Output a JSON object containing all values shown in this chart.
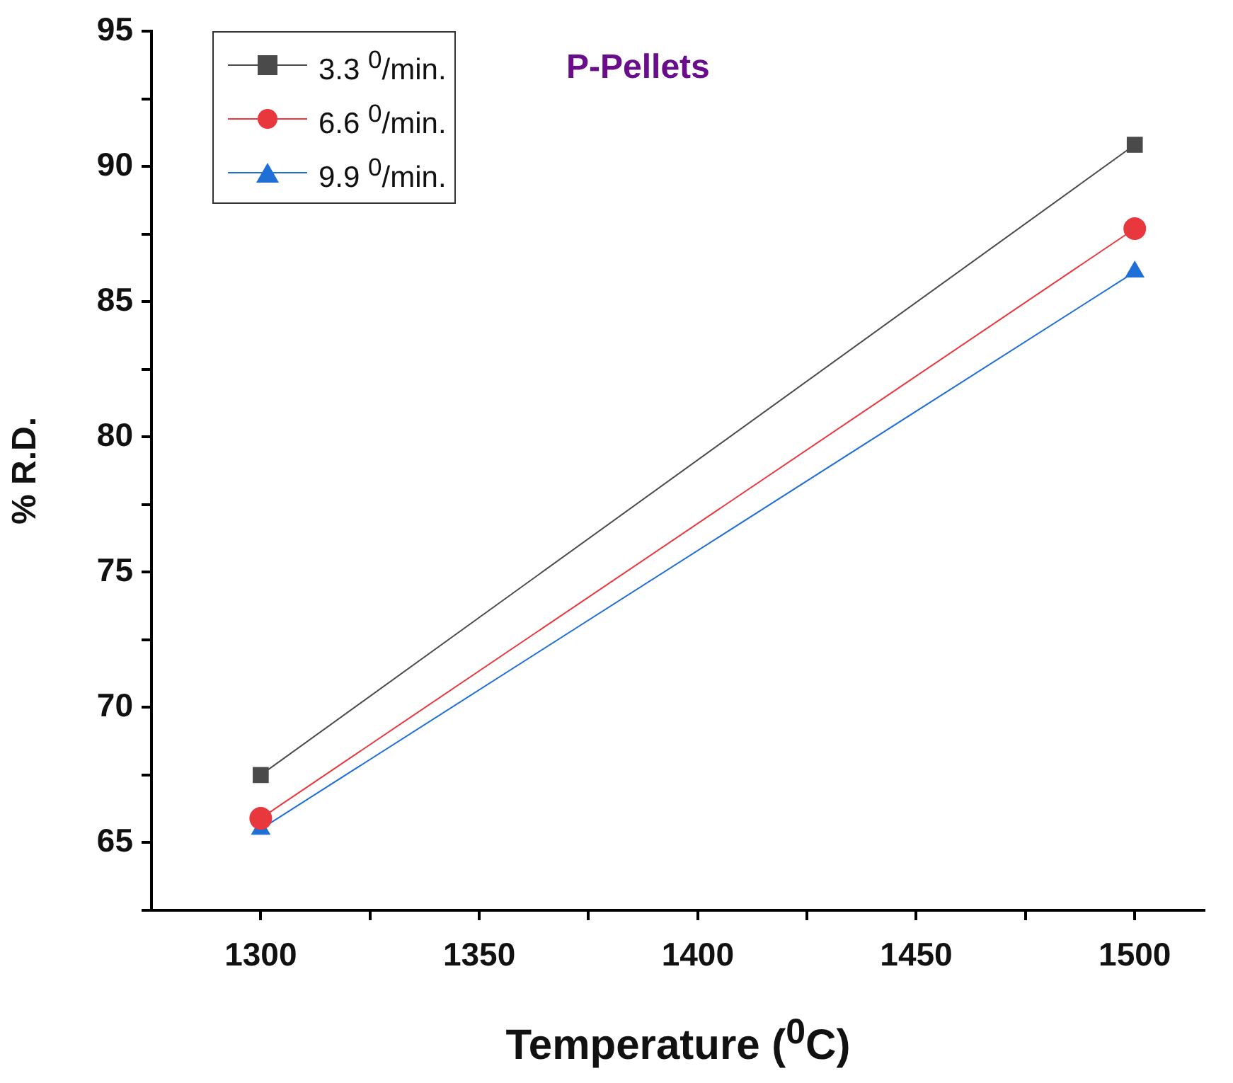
{
  "chart_data": {
    "type": "line",
    "title": "P-Pellets",
    "xlabel": "Temperature ($^{0}$C)",
    "ylabel": "% R.D.",
    "x": [
      1300,
      1500
    ],
    "series": [
      {
        "name": "3.3 $^{0}$/min.",
        "color": "#4a4a4a",
        "marker": "square",
        "values": [
          67.5,
          90.8
        ]
      },
      {
        "name": "6.6 $^{0}$/min.",
        "color": "#e8383d",
        "marker": "circle",
        "values": [
          65.9,
          87.7
        ]
      },
      {
        "name": "9.9 $^{0}$/min.",
        "color": "#1f6fd6",
        "marker": "triangle",
        "values": [
          65.5,
          86.1
        ]
      }
    ],
    "xlim": [
      1275,
      1516
    ],
    "xticks": [
      1300,
      {
        "value": 1325,
        "label": null
      },
      1350,
      {
        "value": 1375,
        "label": null
      },
      1400,
      {
        "value": 1425,
        "label": null
      },
      1450,
      {
        "value": 1475,
        "label": null
      },
      1500
    ],
    "ylim": [
      62.5,
      95
    ],
    "yticks": [
      {
        "value": 62.5,
        "label": null
      },
      65,
      {
        "value": 67.5,
        "label": null
      },
      70,
      {
        "value": 72.5,
        "label": null
      },
      75,
      {
        "value": 77.5,
        "label": null
      },
      80,
      {
        "value": 82.5,
        "label": null
      },
      85,
      {
        "value": 87.5,
        "label": null
      },
      90,
      {
        "value": 92.5,
        "label": null
      },
      95
    ],
    "grid": false,
    "legend": "top left",
    "line_style": "solid"
  }
}
